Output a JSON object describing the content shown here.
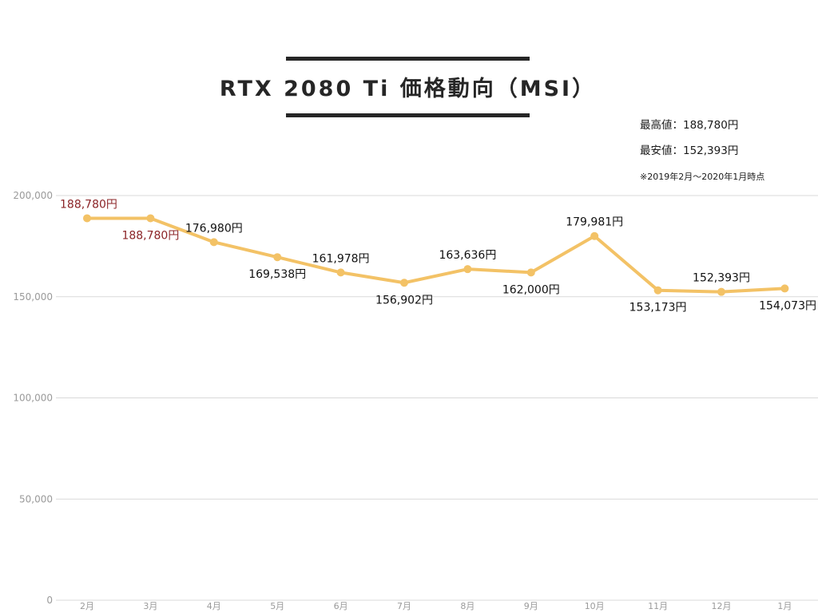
{
  "title": "RTX 2080 Ti 価格動向（MSI）",
  "stats": {
    "max": "最高値：188,780円",
    "min": "最安値：152,393円",
    "note": "※2019年2月〜2020年1月時点"
  },
  "colors": {
    "line": "#f3c266",
    "highlight_label": "#8b2427",
    "label": "#111111",
    "grid": "#d9d9d9",
    "tick": "#9a9a9a"
  },
  "chart_data": {
    "type": "line",
    "title": "RTX 2080 Ti 価格動向（MSI）",
    "categories": [
      "2月",
      "3月",
      "4月",
      "5月",
      "6月",
      "7月",
      "8月",
      "9月",
      "10月",
      "11月",
      "12月",
      "1月"
    ],
    "series": [
      {
        "values": [
          188780,
          188780,
          176980,
          169538,
          161978,
          156902,
          163636,
          162000,
          179981,
          153173,
          152393,
          154073
        ]
      }
    ],
    "data_labels": [
      "188,780円",
      "188,780円",
      "176,980円",
      "169,538円",
      "161,978円",
      "156,902円",
      "163,636円",
      "162,000円",
      "179,981円",
      "153,173円",
      "152,393円",
      "154,073円"
    ],
    "highlight_indices": [
      0,
      1
    ],
    "label_positions": [
      "above",
      "below",
      "above",
      "below",
      "above",
      "below",
      "above",
      "below",
      "above",
      "below",
      "above",
      "below"
    ],
    "ylim": [
      0,
      200000
    ],
    "yticks": [
      0,
      50000,
      100000,
      150000,
      200000
    ],
    "ytick_labels": [
      "0",
      "50,000",
      "100,000",
      "150,000",
      "200,000"
    ],
    "grid": true,
    "legend": "none",
    "xlabel": "",
    "ylabel": ""
  }
}
